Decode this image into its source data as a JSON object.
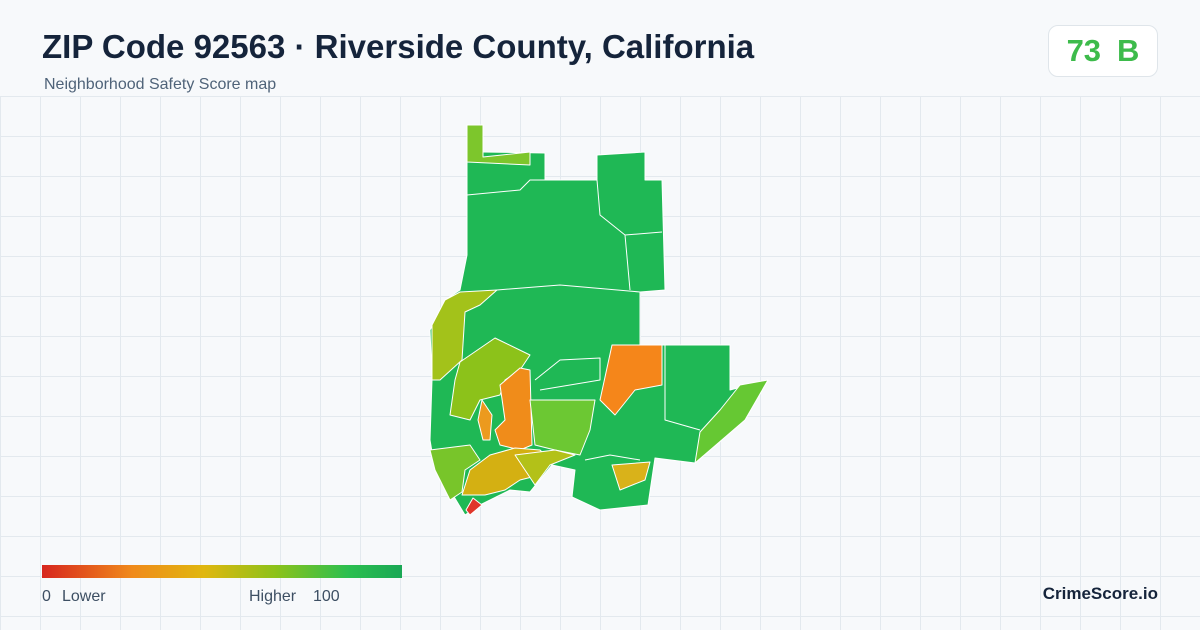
{
  "header": {
    "title": "ZIP Code 92563 · Riverside County, California",
    "subtitle": "Neighborhood Safety Score map"
  },
  "score": {
    "value": 73,
    "grade": "B"
  },
  "legend": {
    "min": 0,
    "min_label": "Lower",
    "max_label": "Higher",
    "max": 100
  },
  "brand": "CrimeScore.io"
}
